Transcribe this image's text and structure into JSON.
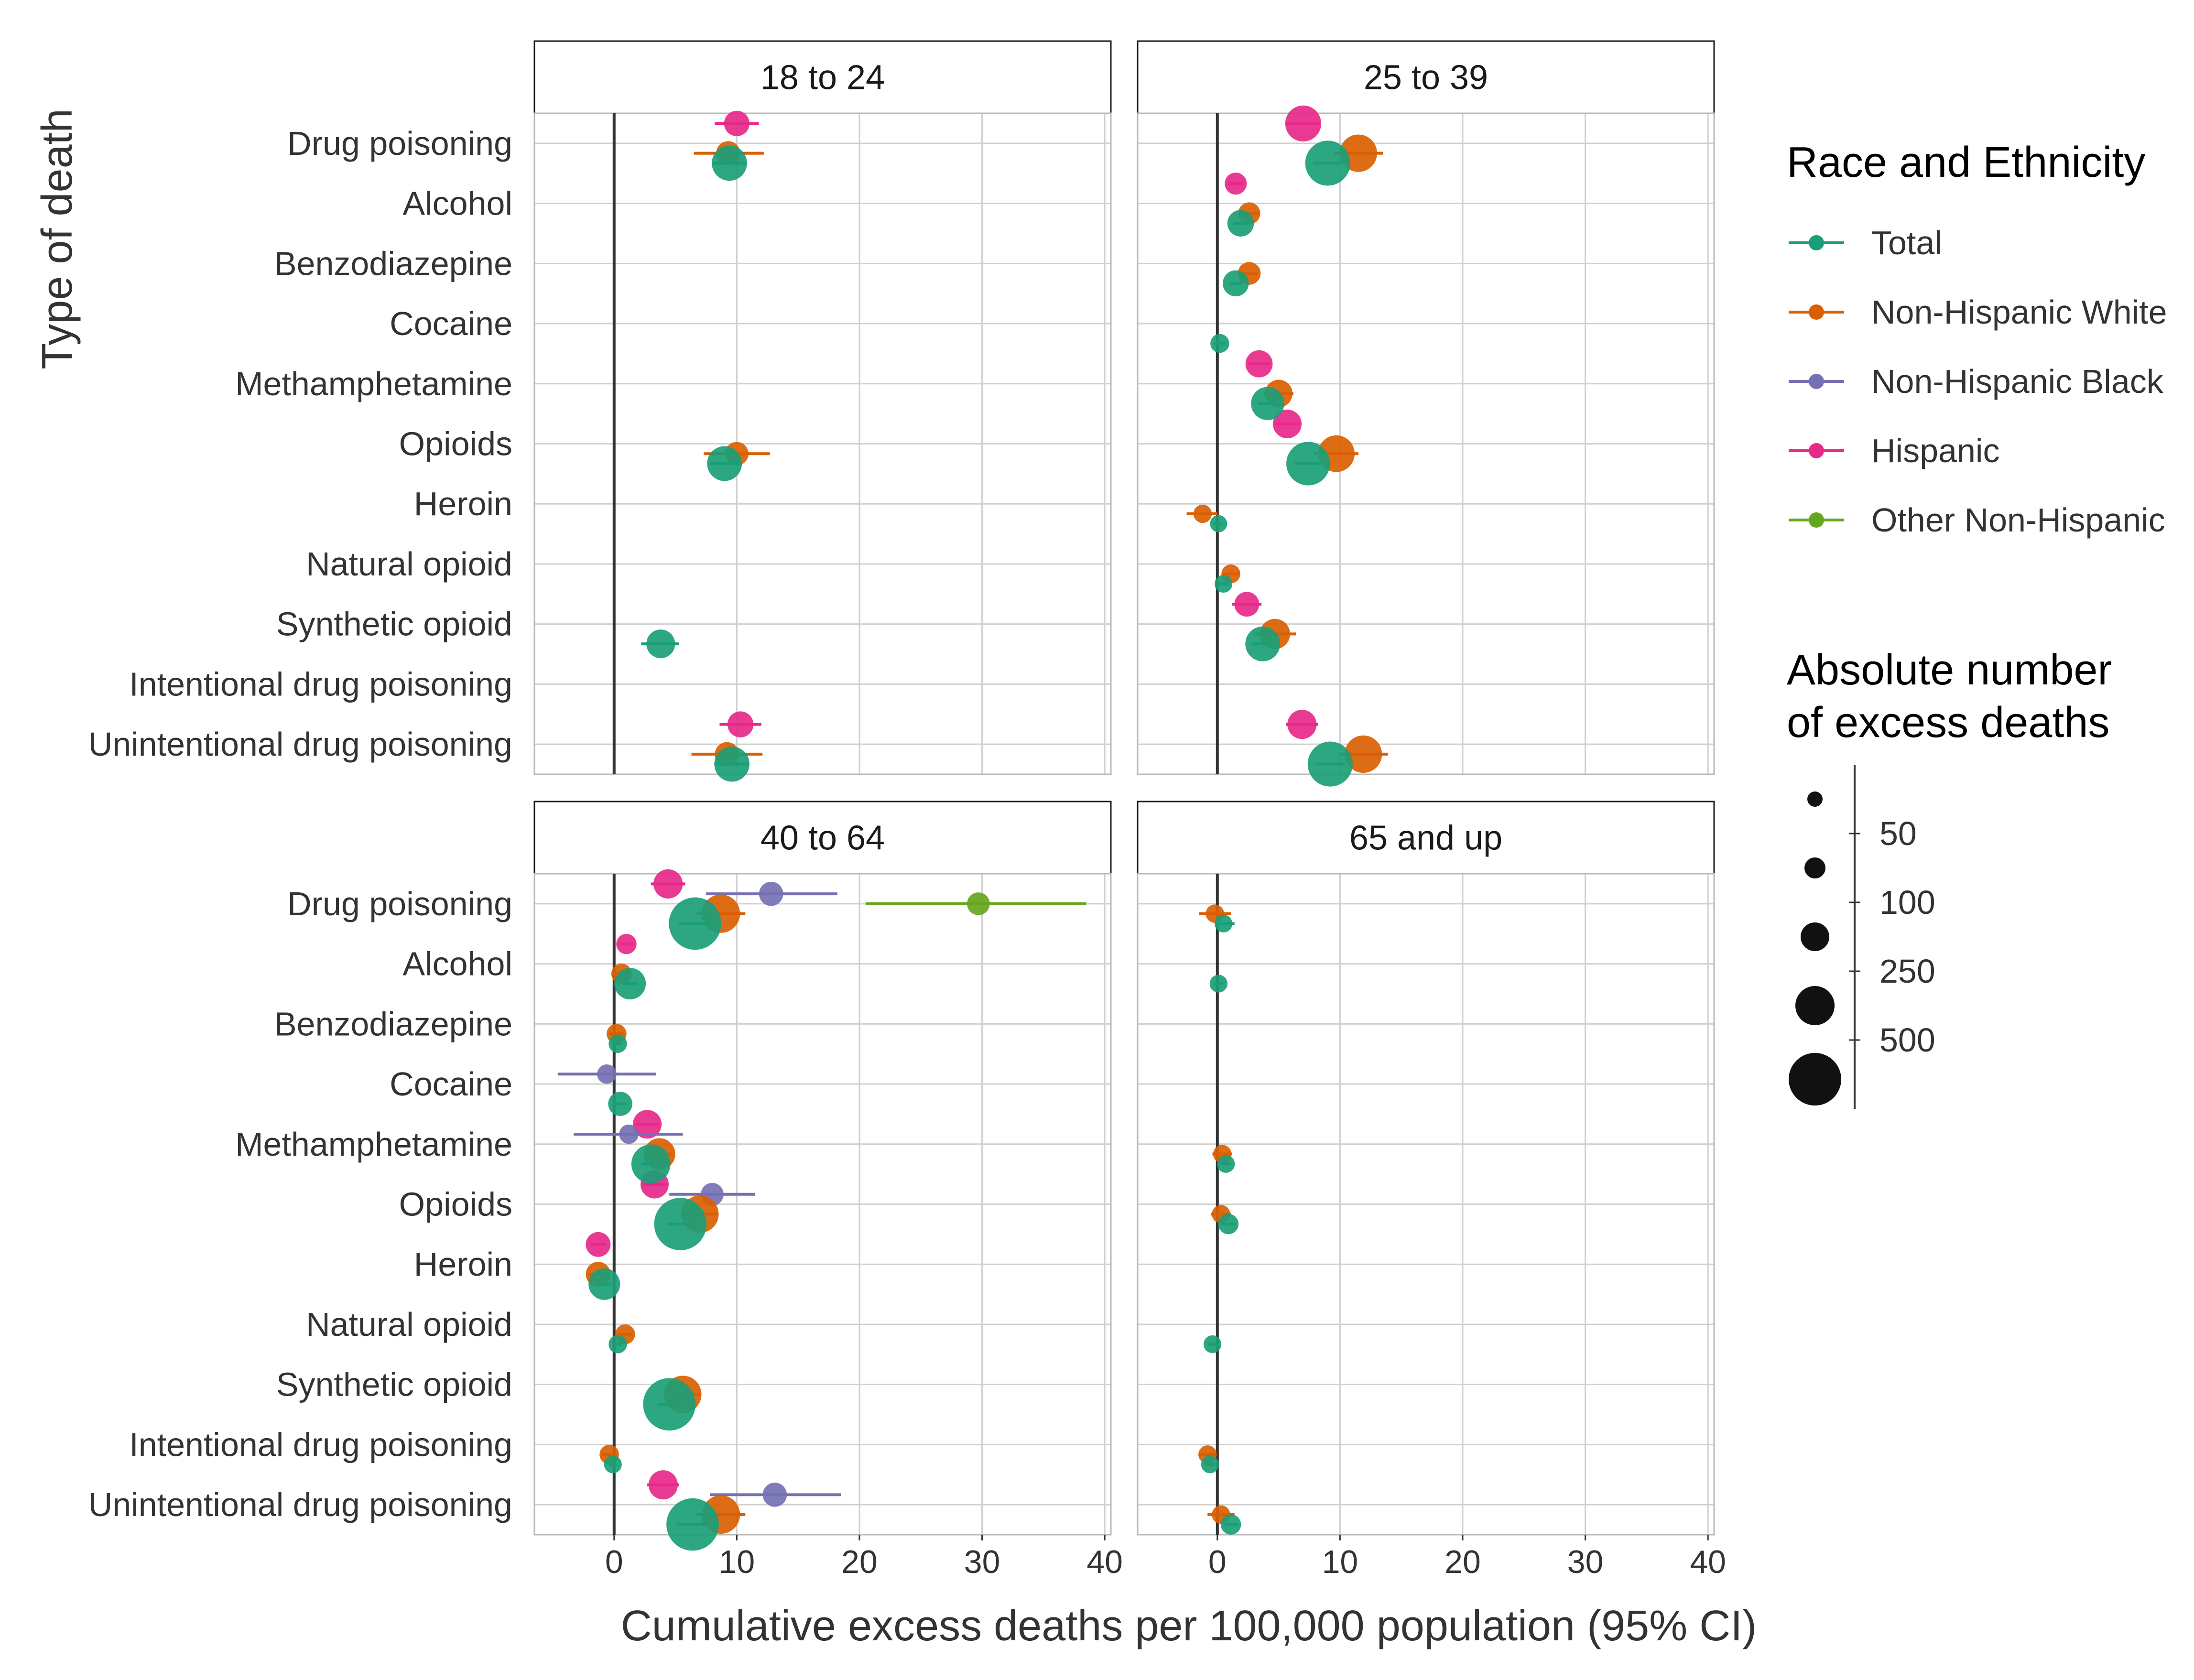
{
  "chart_data": {
    "type": "scatter",
    "xlabel": "Cumulative excess deaths per 100,000 population (95% CI)",
    "ylabel": "Type of death",
    "xlim": [
      -6.5,
      40.5
    ],
    "xticks": [
      0,
      10,
      20,
      30,
      40
    ],
    "grid": true,
    "legend_position": "right",
    "categories": [
      "Drug poisoning",
      "Alcohol",
      "Benzodiazepine",
      "Cocaine",
      "Methamphetamine",
      "Opioids",
      "Heroin",
      "Natural opioid",
      "Synthetic opioid",
      "Intentional drug poisoning",
      "Unintentional drug poisoning"
    ],
    "group_order": [
      "Hispanic",
      "Non-Hispanic Black",
      "Other Non-Hispanic",
      "Non-Hispanic White",
      "Total"
    ],
    "legend": {
      "color_title": "Race and Ethnicity",
      "color_items": [
        {
          "name": "Total",
          "color": "#1b9e77"
        },
        {
          "name": "Non-Hispanic White",
          "color": "#d95f02"
        },
        {
          "name": "Non-Hispanic Black",
          "color": "#7570b3"
        },
        {
          "name": "Hispanic",
          "color": "#e7298a"
        },
        {
          "name": "Other Non-Hispanic",
          "color": "#66a61e"
        }
      ],
      "size_title_line1": "Absolute number",
      "size_title_line2": "of excess deaths",
      "size_breaks": [
        {
          "label": "50",
          "value": 50
        },
        {
          "label": "100",
          "value": 100
        },
        {
          "label": "250",
          "value": 250
        },
        {
          "label": "500",
          "value": 500
        }
      ]
    },
    "panels": [
      {
        "label": "18 to 24",
        "points": [
          {
            "category": "Drug poisoning",
            "group": "Hispanic",
            "x": 10.0,
            "lo": 8.2,
            "hi": 11.8,
            "n": 130
          },
          {
            "category": "Drug poisoning",
            "group": "Non-Hispanic White",
            "x": 9.3,
            "lo": 6.5,
            "hi": 12.2,
            "n": 110
          },
          {
            "category": "Drug poisoning",
            "group": "Total",
            "x": 9.4,
            "lo": 8.0,
            "hi": 10.8,
            "n": 340
          },
          {
            "category": "Opioids",
            "group": "Non-Hispanic White",
            "x": 10.0,
            "lo": 7.3,
            "hi": 12.7,
            "n": 100
          },
          {
            "category": "Opioids",
            "group": "Total",
            "x": 9.0,
            "lo": 7.8,
            "hi": 10.2,
            "n": 330
          },
          {
            "category": "Synthetic opioid",
            "group": "Total",
            "x": 3.8,
            "lo": 2.2,
            "hi": 5.3,
            "n": 190
          },
          {
            "category": "Unintentional drug poisoning",
            "group": "Hispanic",
            "x": 10.3,
            "lo": 8.6,
            "hi": 12.0,
            "n": 140
          },
          {
            "category": "Unintentional drug poisoning",
            "group": "Non-Hispanic White",
            "x": 9.2,
            "lo": 6.3,
            "hi": 12.1,
            "n": 110
          },
          {
            "category": "Unintentional drug poisoning",
            "group": "Total",
            "x": 9.6,
            "lo": 8.2,
            "hi": 11.0,
            "n": 340
          }
        ]
      },
      {
        "label": "25 to 39",
        "points": [
          {
            "category": "Drug poisoning",
            "group": "Hispanic",
            "x": 7.0,
            "lo": 5.6,
            "hi": 8.4,
            "n": 360
          },
          {
            "category": "Drug poisoning",
            "group": "Non-Hispanic White",
            "x": 11.5,
            "lo": 9.5,
            "hi": 13.5,
            "n": 400
          },
          {
            "category": "Drug poisoning",
            "group": "Total",
            "x": 9.0,
            "lo": 7.8,
            "hi": 10.2,
            "n": 650
          },
          {
            "category": "Alcohol",
            "group": "Hispanic",
            "x": 1.5,
            "lo": 0.9,
            "hi": 2.1,
            "n": 80
          },
          {
            "category": "Alcohol",
            "group": "Non-Hispanic White",
            "x": 2.6,
            "lo": 1.8,
            "hi": 3.4,
            "n": 80
          },
          {
            "category": "Alcohol",
            "group": "Total",
            "x": 1.9,
            "lo": 1.3,
            "hi": 2.5,
            "n": 150
          },
          {
            "category": "Benzodiazepine",
            "group": "Non-Hispanic White",
            "x": 2.6,
            "lo": 1.9,
            "hi": 3.3,
            "n": 90
          },
          {
            "category": "Benzodiazepine",
            "group": "Total",
            "x": 1.5,
            "lo": 1.0,
            "hi": 2.0,
            "n": 140
          },
          {
            "category": "Cocaine",
            "group": "Total",
            "x": 0.2,
            "lo": -0.3,
            "hi": 0.7,
            "n": 45
          },
          {
            "category": "Methamphetamine",
            "group": "Hispanic",
            "x": 3.4,
            "lo": 2.5,
            "hi": 4.3,
            "n": 160
          },
          {
            "category": "Methamphetamine",
            "group": "Non-Hispanic White",
            "x": 5.0,
            "lo": 3.8,
            "hi": 6.2,
            "n": 170
          },
          {
            "category": "Methamphetamine",
            "group": "Total",
            "x": 4.1,
            "lo": 3.3,
            "hi": 4.9,
            "n": 290
          },
          {
            "category": "Opioids",
            "group": "Hispanic",
            "x": 5.7,
            "lo": 4.7,
            "hi": 6.7,
            "n": 190
          },
          {
            "category": "Opioids",
            "group": "Non-Hispanic White",
            "x": 9.7,
            "lo": 7.9,
            "hi": 11.5,
            "n": 380
          },
          {
            "category": "Opioids",
            "group": "Total",
            "x": 7.4,
            "lo": 6.3,
            "hi": 8.5,
            "n": 600
          },
          {
            "category": "Heroin",
            "group": "Non-Hispanic White",
            "x": -1.2,
            "lo": -2.5,
            "hi": 0.0,
            "n": 40
          },
          {
            "category": "Heroin",
            "group": "Total",
            "x": 0.1,
            "lo": -0.3,
            "hi": 0.5,
            "n": 30
          },
          {
            "category": "Natural opioid",
            "group": "Non-Hispanic White",
            "x": 1.1,
            "lo": 0.4,
            "hi": 1.8,
            "n": 45
          },
          {
            "category": "Natural opioid",
            "group": "Total",
            "x": 0.5,
            "lo": 0.1,
            "hi": 0.9,
            "n": 35
          },
          {
            "category": "Synthetic opioid",
            "group": "Hispanic",
            "x": 2.4,
            "lo": 1.2,
            "hi": 3.6,
            "n": 120
          },
          {
            "category": "Synthetic opioid",
            "group": "Non-Hispanic White",
            "x": 4.7,
            "lo": 3.0,
            "hi": 6.4,
            "n": 220
          },
          {
            "category": "Synthetic opioid",
            "group": "Total",
            "x": 3.7,
            "lo": 2.8,
            "hi": 4.6,
            "n": 330
          },
          {
            "category": "Unintentional drug poisoning",
            "group": "Hispanic",
            "x": 6.9,
            "lo": 5.6,
            "hi": 8.2,
            "n": 200
          },
          {
            "category": "Unintentional drug poisoning",
            "group": "Non-Hispanic White",
            "x": 11.9,
            "lo": 9.9,
            "hi": 13.9,
            "n": 400
          },
          {
            "category": "Unintentional drug poisoning",
            "group": "Total",
            "x": 9.2,
            "lo": 8.0,
            "hi": 10.4,
            "n": 650
          }
        ]
      },
      {
        "label": "40 to 64",
        "points": [
          {
            "category": "Drug poisoning",
            "group": "Hispanic",
            "x": 4.4,
            "lo": 3.0,
            "hi": 5.8,
            "n": 200
          },
          {
            "category": "Drug poisoning",
            "group": "Non-Hispanic Black",
            "x": 12.8,
            "lo": 7.5,
            "hi": 18.2,
            "n": 110
          },
          {
            "category": "Drug poisoning",
            "group": "Other Non-Hispanic",
            "x": 29.7,
            "lo": 20.5,
            "hi": 38.5,
            "n": 90
          },
          {
            "category": "Drug poisoning",
            "group": "Non-Hispanic White",
            "x": 8.7,
            "lo": 6.7,
            "hi": 10.7,
            "n": 430
          },
          {
            "category": "Drug poisoning",
            "group": "Total",
            "x": 6.6,
            "lo": 5.3,
            "hi": 7.9,
            "n": 950
          },
          {
            "category": "Alcohol",
            "group": "Hispanic",
            "x": 1.0,
            "lo": 0.4,
            "hi": 1.6,
            "n": 60
          },
          {
            "category": "Alcohol",
            "group": "Non-Hispanic White",
            "x": 0.6,
            "lo": -0.1,
            "hi": 1.3,
            "n": 60
          },
          {
            "category": "Alcohol",
            "group": "Total",
            "x": 1.3,
            "lo": 0.7,
            "hi": 1.9,
            "n": 250
          },
          {
            "category": "Benzodiazepine",
            "group": "Non-Hispanic White",
            "x": 0.2,
            "lo": -0.4,
            "hi": 0.8,
            "n": 55
          },
          {
            "category": "Benzodiazepine",
            "group": "Total",
            "x": 0.3,
            "lo": 0.0,
            "hi": 0.6,
            "n": 40
          },
          {
            "category": "Cocaine",
            "group": "Non-Hispanic Black",
            "x": -0.6,
            "lo": -4.6,
            "hi": 3.4,
            "n": 50
          },
          {
            "category": "Cocaine",
            "group": "Total",
            "x": 0.5,
            "lo": 0.0,
            "hi": 1.0,
            "n": 110
          },
          {
            "category": "Methamphetamine",
            "group": "Hispanic",
            "x": 2.7,
            "lo": 1.7,
            "hi": 3.7,
            "n": 190
          },
          {
            "category": "Methamphetamine",
            "group": "Non-Hispanic Black",
            "x": 1.2,
            "lo": -3.3,
            "hi": 5.6,
            "n": 50
          },
          {
            "category": "Methamphetamine",
            "group": "Non-Hispanic White",
            "x": 3.7,
            "lo": 2.6,
            "hi": 4.8,
            "n": 250
          },
          {
            "category": "Methamphetamine",
            "group": "Total",
            "x": 3.0,
            "lo": 2.2,
            "hi": 3.8,
            "n": 450
          },
          {
            "category": "Opioids",
            "group": "Hispanic",
            "x": 3.3,
            "lo": 2.3,
            "hi": 4.3,
            "n": 180
          },
          {
            "category": "Opioids",
            "group": "Non-Hispanic Black",
            "x": 8.0,
            "lo": 4.5,
            "hi": 11.5,
            "n": 90
          },
          {
            "category": "Opioids",
            "group": "Non-Hispanic White",
            "x": 7.0,
            "lo": 5.5,
            "hi": 8.5,
            "n": 400
          },
          {
            "category": "Opioids",
            "group": "Total",
            "x": 5.4,
            "lo": 4.3,
            "hi": 6.5,
            "n": 950
          },
          {
            "category": "Heroin",
            "group": "Hispanic",
            "x": -1.3,
            "lo": -1.9,
            "hi": -0.7,
            "n": 120
          },
          {
            "category": "Heroin",
            "group": "Non-Hispanic White",
            "x": -1.3,
            "lo": -2.1,
            "hi": -0.5,
            "n": 120
          },
          {
            "category": "Heroin",
            "group": "Total",
            "x": -0.8,
            "lo": -1.4,
            "hi": -0.2,
            "n": 250
          },
          {
            "category": "Natural opioid",
            "group": "Non-Hispanic White",
            "x": 0.9,
            "lo": 0.3,
            "hi": 1.5,
            "n": 55
          },
          {
            "category": "Natural opioid",
            "group": "Total",
            "x": 0.3,
            "lo": 0.0,
            "hi": 0.6,
            "n": 40
          },
          {
            "category": "Synthetic opioid",
            "group": "Non-Hispanic White",
            "x": 5.6,
            "lo": 4.2,
            "hi": 7.0,
            "n": 400
          },
          {
            "category": "Synthetic opioid",
            "group": "Total",
            "x": 4.5,
            "lo": 3.5,
            "hi": 5.5,
            "n": 950
          },
          {
            "category": "Intentional drug poisoning",
            "group": "Non-Hispanic White",
            "x": -0.4,
            "lo": -1.0,
            "hi": 0.2,
            "n": 50
          },
          {
            "category": "Intentional drug poisoning",
            "group": "Total",
            "x": -0.1,
            "lo": -0.4,
            "hi": 0.2,
            "n": 35
          },
          {
            "category": "Unintentional drug poisoning",
            "group": "Hispanic",
            "x": 4.0,
            "lo": 2.7,
            "hi": 5.3,
            "n": 200
          },
          {
            "category": "Unintentional drug poisoning",
            "group": "Non-Hispanic Black",
            "x": 13.1,
            "lo": 7.8,
            "hi": 18.5,
            "n": 110
          },
          {
            "category": "Unintentional drug poisoning",
            "group": "Non-Hispanic White",
            "x": 8.7,
            "lo": 6.7,
            "hi": 10.7,
            "n": 430
          },
          {
            "category": "Unintentional drug poisoning",
            "group": "Total",
            "x": 6.4,
            "lo": 5.1,
            "hi": 7.7,
            "n": 950
          }
        ]
      },
      {
        "label": "65 and up",
        "points": [
          {
            "category": "Drug poisoning",
            "group": "Non-Hispanic White",
            "x": -0.2,
            "lo": -1.5,
            "hi": 1.1,
            "n": 40
          },
          {
            "category": "Drug poisoning",
            "group": "Total",
            "x": 0.5,
            "lo": -0.2,
            "hi": 1.4,
            "n": 35
          },
          {
            "category": "Alcohol",
            "group": "Total",
            "x": 0.1,
            "lo": -0.3,
            "hi": 0.5,
            "n": 35
          },
          {
            "category": "Methamphetamine",
            "group": "Non-Hispanic White",
            "x": 0.4,
            "lo": -0.4,
            "hi": 1.2,
            "n": 40
          },
          {
            "category": "Methamphetamine",
            "group": "Total",
            "x": 0.7,
            "lo": 0.3,
            "hi": 1.1,
            "n": 35
          },
          {
            "category": "Opioids",
            "group": "Non-Hispanic White",
            "x": 0.3,
            "lo": -0.5,
            "hi": 1.1,
            "n": 40
          },
          {
            "category": "Opioids",
            "group": "Total",
            "x": 0.9,
            "lo": 0.3,
            "hi": 1.5,
            "n": 60
          },
          {
            "category": "Natural opioid",
            "group": "Total",
            "x": -0.4,
            "lo": -0.8,
            "hi": 0.0,
            "n": 35
          },
          {
            "category": "Intentional drug poisoning",
            "group": "Non-Hispanic White",
            "x": -0.8,
            "lo": -1.5,
            "hi": -0.1,
            "n": 40
          },
          {
            "category": "Intentional drug poisoning",
            "group": "Total",
            "x": -0.6,
            "lo": -1.0,
            "hi": -0.2,
            "n": 35
          },
          {
            "category": "Unintentional drug poisoning",
            "group": "Non-Hispanic White",
            "x": 0.3,
            "lo": -0.8,
            "hi": 1.4,
            "n": 40
          },
          {
            "category": "Unintentional drug poisoning",
            "group": "Total",
            "x": 1.1,
            "lo": 0.5,
            "hi": 1.7,
            "n": 60
          }
        ]
      }
    ]
  }
}
